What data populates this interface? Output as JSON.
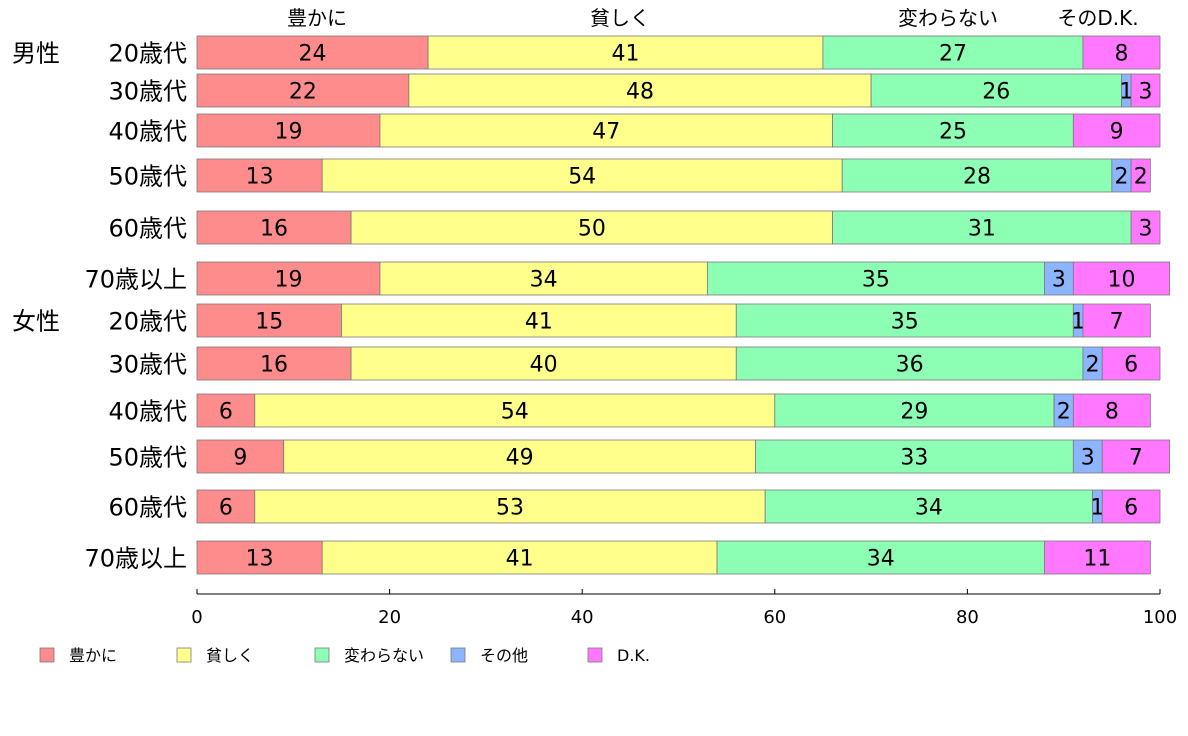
{
  "chart_data": {
    "type": "bar",
    "orientation": "horizontal",
    "stacked": true,
    "title": "",
    "xlabel": "",
    "ylabel": "",
    "xlim": [
      0,
      100
    ],
    "xticks": [
      "0",
      "20",
      "40",
      "60",
      "80",
      "100"
    ],
    "header_labels": [
      "豊かに",
      "貧しく",
      "変わらない",
      "そのD.K."
    ],
    "groups": [
      "男性",
      "女性"
    ],
    "categories": [
      {
        "group": "男性",
        "label": "20歳代"
      },
      {
        "group": "",
        "label": "30歳代"
      },
      {
        "group": "",
        "label": "40歳代"
      },
      {
        "group": "",
        "label": "50歳代"
      },
      {
        "group": "",
        "label": "60歳代"
      },
      {
        "group": "",
        "label": "70歳以上"
      },
      {
        "group": "女性",
        "label": "20歳代"
      },
      {
        "group": "",
        "label": "30歳代"
      },
      {
        "group": "",
        "label": "40歳代"
      },
      {
        "group": "",
        "label": "50歳代"
      },
      {
        "group": "",
        "label": "60歳代"
      },
      {
        "group": "",
        "label": "70歳以上"
      }
    ],
    "series": [
      {
        "name": "豊かに",
        "color": "#ff8c8c",
        "values": [
          24,
          22,
          19,
          13,
          16,
          19,
          15,
          16,
          6,
          9,
          6,
          13
        ]
      },
      {
        "name": "貧しく",
        "color": "#ffff8c",
        "values": [
          41,
          48,
          47,
          54,
          50,
          34,
          41,
          40,
          54,
          49,
          53,
          41
        ]
      },
      {
        "name": "変わらない",
        "color": "#8cffb4",
        "values": [
          27,
          26,
          25,
          28,
          31,
          35,
          35,
          36,
          29,
          33,
          34,
          34
        ]
      },
      {
        "name": "その他",
        "color": "#8cb4ff",
        "values": [
          0,
          1,
          0,
          2,
          0,
          3,
          1,
          2,
          2,
          3,
          1,
          0
        ]
      },
      {
        "name": "D.K.",
        "color": "#ff78ff",
        "values": [
          8,
          3,
          9,
          2,
          3,
          10,
          7,
          6,
          8,
          7,
          6,
          11
        ]
      }
    ],
    "legend_position": "bottom-left"
  }
}
